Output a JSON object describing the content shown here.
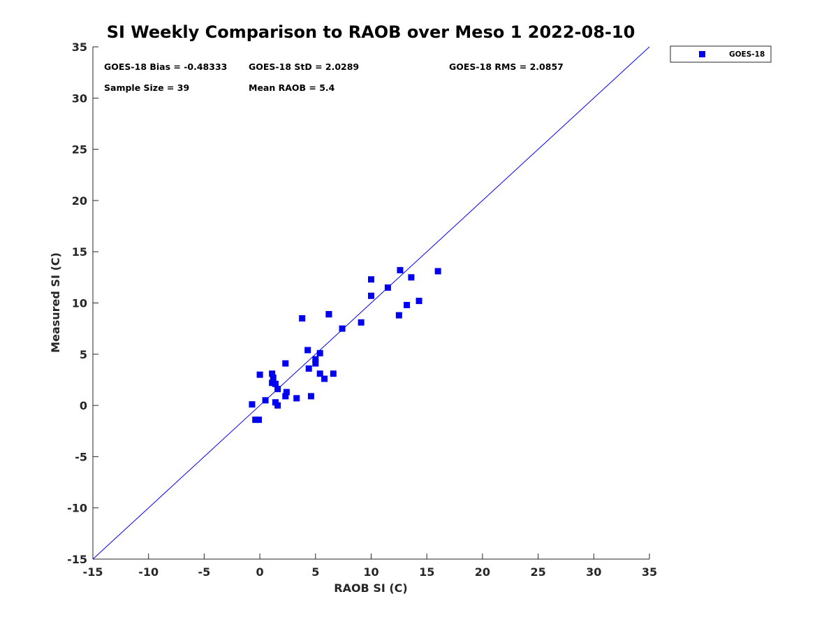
{
  "chart_data": {
    "type": "scatter",
    "title": "SI Weekly Comparison to RAOB over Meso 1 2022-08-10",
    "xlabel": "RAOB SI (C)",
    "ylabel": "Measured SI (C)",
    "xlim": [
      -15,
      35
    ],
    "ylim": [
      -15,
      35
    ],
    "xticks": [
      -15,
      -10,
      -5,
      0,
      5,
      10,
      15,
      20,
      25,
      30,
      35
    ],
    "yticks": [
      -15,
      -10,
      -5,
      0,
      5,
      10,
      15,
      20,
      25,
      30,
      35
    ],
    "grid": false,
    "legend_position": "outside-top-right",
    "reference_line": {
      "type": "one-to-one",
      "color": "#0000ff"
    },
    "annotations": {
      "bias": "GOES-18 Bias = -0.48333",
      "std": "GOES-18 StD = 2.0289",
      "rms": "GOES-18 RMS = 2.0857",
      "sample_size": "Sample Size = 39",
      "mean_raob": "Mean RAOB = 5.4"
    },
    "series": [
      {
        "name": "GOES-18",
        "color": "#0000ee",
        "marker": "square",
        "points": [
          [
            -0.7,
            0.1
          ],
          [
            -0.4,
            -1.4
          ],
          [
            -0.1,
            -1.4
          ],
          [
            0.0,
            3.0
          ],
          [
            0.5,
            0.5
          ],
          [
            1.1,
            3.1
          ],
          [
            1.1,
            2.2
          ],
          [
            1.2,
            2.7
          ],
          [
            1.4,
            2.1
          ],
          [
            1.4,
            0.3
          ],
          [
            1.6,
            1.6
          ],
          [
            1.6,
            0.0
          ],
          [
            2.3,
            4.1
          ],
          [
            2.3,
            0.9
          ],
          [
            2.4,
            1.3
          ],
          [
            3.3,
            0.7
          ],
          [
            3.8,
            8.5
          ],
          [
            4.3,
            5.4
          ],
          [
            4.4,
            3.6
          ],
          [
            4.6,
            0.9
          ],
          [
            5.0,
            4.1
          ],
          [
            5.0,
            4.5
          ],
          [
            5.4,
            5.1
          ],
          [
            5.4,
            3.1
          ],
          [
            5.8,
            2.6
          ],
          [
            6.2,
            8.9
          ],
          [
            6.6,
            3.1
          ],
          [
            7.4,
            7.5
          ],
          [
            9.1,
            8.1
          ],
          [
            10.0,
            12.3
          ],
          [
            10.0,
            10.7
          ],
          [
            11.5,
            11.5
          ],
          [
            12.5,
            8.8
          ],
          [
            12.6,
            13.2
          ],
          [
            13.2,
            9.8
          ],
          [
            13.6,
            12.5
          ],
          [
            14.3,
            10.2
          ],
          [
            16.0,
            13.1
          ],
          [
            6.2,
            8.9
          ]
        ]
      }
    ]
  }
}
